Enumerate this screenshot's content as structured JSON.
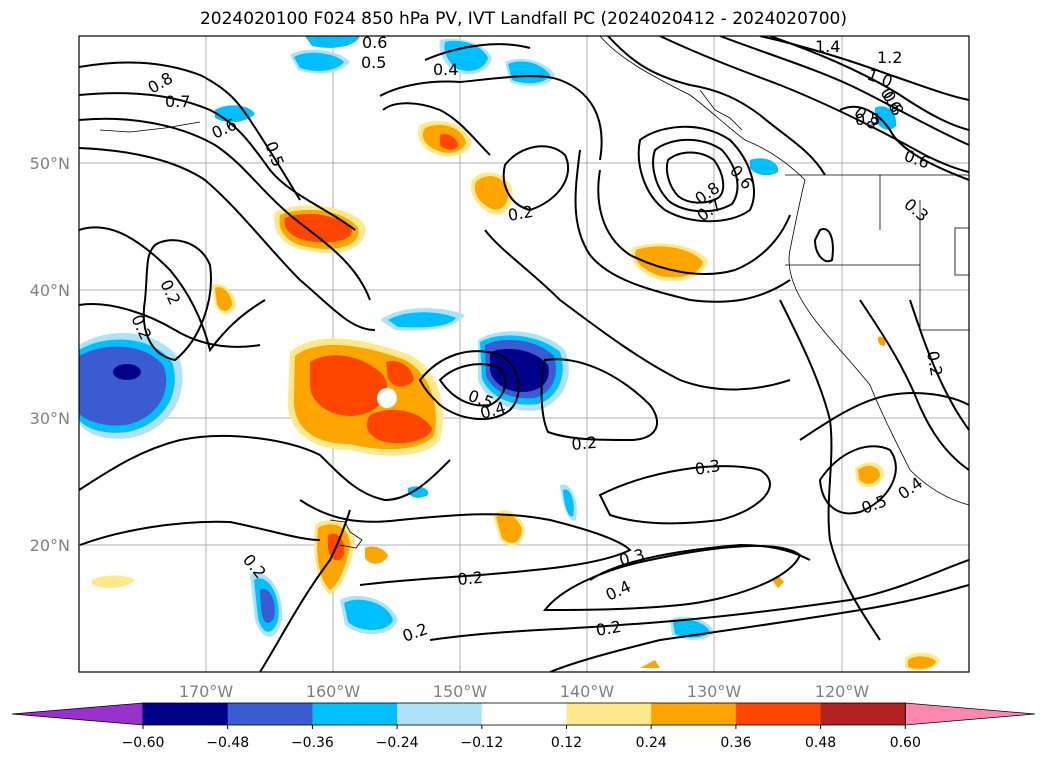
{
  "title": "2024020100 F024 850 hPa PV, IVT Landfall PC (2024020412 - 2024020700)",
  "map": {
    "lat_labels": [
      "50°N",
      "40°N",
      "30°N",
      "20°N"
    ],
    "lon_labels": [
      "170°W",
      "160°W",
      "150°W",
      "140°W",
      "130°W",
      "120°W"
    ],
    "gridlines": true
  },
  "contour_labels": [
    {
      "name": "c-1.4",
      "text": "1.4"
    },
    {
      "name": "c-1.2",
      "text": "1.2"
    },
    {
      "name": "c-1.0",
      "text": "1.0"
    },
    {
      "name": "c-0.8a",
      "text": "0.8"
    },
    {
      "name": "c-0.6a",
      "text": "0.6"
    },
    {
      "name": "c-0.5a",
      "text": "0.5"
    },
    {
      "name": "c-0.4a",
      "text": "0.4"
    },
    {
      "name": "c-0.8b",
      "text": "0.8"
    },
    {
      "name": "c-0.7a",
      "text": "0.7"
    },
    {
      "name": "c-0.6b",
      "text": "0.6"
    },
    {
      "name": "c-0.5b",
      "text": "0.5"
    },
    {
      "name": "c-0.8c",
      "text": "0.8"
    },
    {
      "name": "c-0.6c",
      "text": "0.6"
    },
    {
      "name": "c-0.8d",
      "text": "0.8"
    },
    {
      "name": "c-0.7b",
      "text": "0.7"
    },
    {
      "name": "c-0.6d",
      "text": "0.6"
    },
    {
      "name": "c-0.5c",
      "text": "0.5"
    },
    {
      "name": "c-0.6e",
      "text": "0.6"
    },
    {
      "name": "c-0.3a",
      "text": "0.3"
    },
    {
      "name": "c-0.2a",
      "text": "0.2"
    },
    {
      "name": "c-0.2b",
      "text": "0.2"
    },
    {
      "name": "c-0.2c",
      "text": "0.2"
    },
    {
      "name": "c-0.5d",
      "text": "0.5"
    },
    {
      "name": "c-0.4b",
      "text": "0.4"
    },
    {
      "name": "c-0.2d",
      "text": "0.2"
    },
    {
      "name": "c-0.3b",
      "text": "0.3"
    },
    {
      "name": "c-0.5e",
      "text": "0.5"
    },
    {
      "name": "c-0.4c",
      "text": "0.4"
    },
    {
      "name": "c-0.2e",
      "text": "0.2"
    },
    {
      "name": "c-0.2f",
      "text": "0.2"
    },
    {
      "name": "c-0.3c",
      "text": "0.3"
    },
    {
      "name": "c-0.4d",
      "text": "0.4"
    },
    {
      "name": "c-0.2g",
      "text": "0.2"
    },
    {
      "name": "c-0.2h",
      "text": "0.2"
    },
    {
      "name": "c-0.2i",
      "text": "0.2"
    }
  ],
  "colorbar": {
    "ticks": [
      "−0.60",
      "−0.48",
      "−0.36",
      "−0.24",
      "−0.12",
      "0.12",
      "0.24",
      "0.36",
      "0.48",
      "0.60"
    ],
    "colors": [
      "#9932cc",
      "#00008b",
      "#3a5bd1",
      "#00bfff",
      "#aee2f8",
      "#ffffff",
      "#ffe98a",
      "#ffa500",
      "#ff4500",
      "#b22222",
      "#ff88b0"
    ],
    "extend": "both"
  }
}
